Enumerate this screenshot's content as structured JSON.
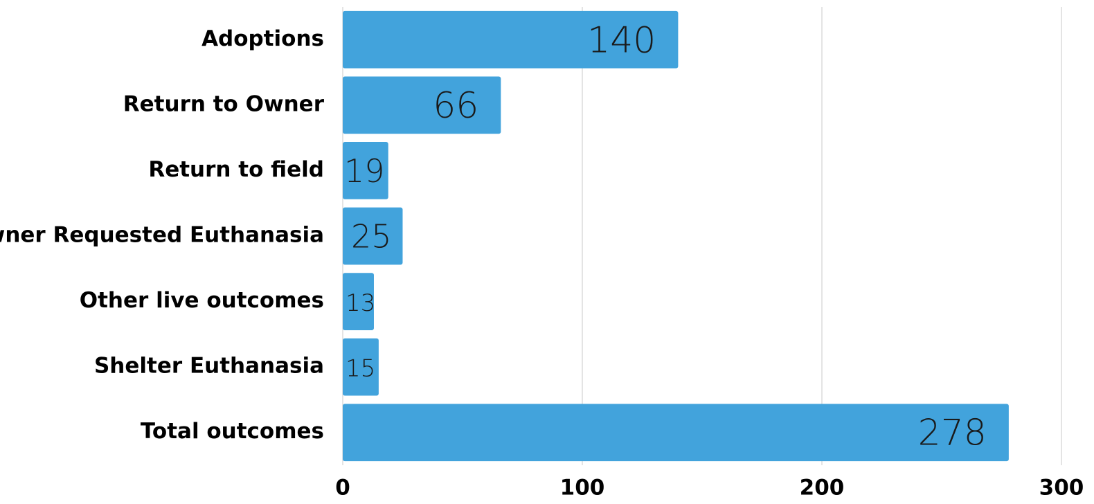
{
  "chart_data": {
    "type": "barh",
    "categories": [
      "Adoptions",
      "Return to Owner",
      "Return to field",
      "Owner Requested Euthanasia",
      "Other live outcomes",
      "Shelter Euthanasia",
      "Total outcomes"
    ],
    "values": [
      140,
      66,
      19,
      25,
      13,
      15,
      278
    ],
    "color": "#42a3dc",
    "xlim": [
      0,
      300
    ],
    "xticks": [
      0,
      100,
      200,
      300
    ],
    "grid": true
  }
}
